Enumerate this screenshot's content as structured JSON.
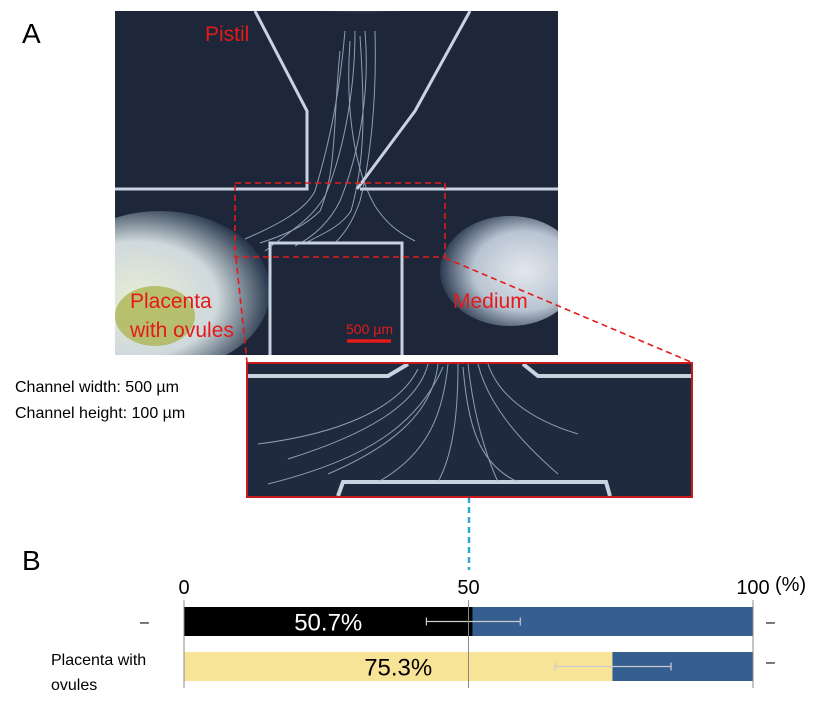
{
  "panel_a": {
    "letter": "A",
    "labels": {
      "pistil": "Pistil",
      "placenta": [
        "Placenta",
        "with ovules"
      ],
      "medium": "Medium",
      "scale_bar": "500 µm"
    },
    "specs": [
      "Channel width: 500 µm",
      "Channel height: 100 µm"
    ]
  },
  "panel_b": {
    "letter": "B",
    "unit": "(%)",
    "rows": [
      {
        "left": "–",
        "right": "–"
      },
      {
        "left_lines": [
          "Placenta with",
          "ovules"
        ],
        "right": "–"
      }
    ]
  },
  "colors": {
    "black_bar": "#000000",
    "yellow_bar": "#f8e497",
    "blue_bar": "#365f91",
    "label_red": "#e41a1a",
    "dashed_cyan": "#31a8d2"
  },
  "chart_data": {
    "type": "bar",
    "orientation": "horizontal",
    "stacked": true,
    "xlim": [
      0,
      100
    ],
    "x_ticks": [
      "0",
      "50",
      "100"
    ],
    "categories": [
      "–",
      "Placenta with ovules"
    ],
    "series": [
      {
        "values": [
          50.7,
          75.3
        ],
        "colors": [
          "#000000",
          "#f8e497"
        ],
        "data_labels": [
          "50.7%",
          "75.3%"
        ]
      },
      {
        "values": [
          49.3,
          24.7
        ],
        "color": "#365f91"
      }
    ],
    "error_bars": [
      {
        "center": 50.7,
        "low": 42.6,
        "high": 59.1
      },
      {
        "center": 75.3,
        "low": 65.2,
        "high": 85.6
      }
    ]
  }
}
